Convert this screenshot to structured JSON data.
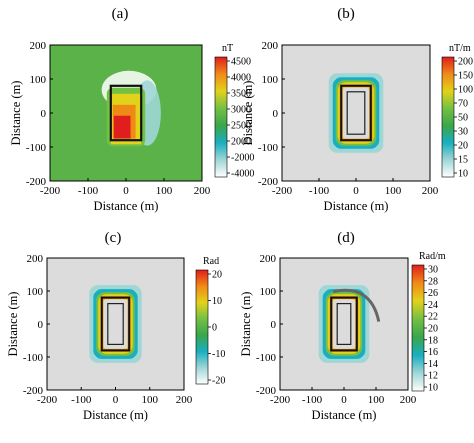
{
  "chart_data": [
    {
      "type": "heatmap",
      "label": "(a)",
      "xlabel": "Distance (m)",
      "ylabel": "Distance (m)",
      "xlim": [
        -200,
        200
      ],
      "ylim": [
        -200,
        200
      ],
      "x_ticks": [
        "-200",
        "-100",
        "0",
        "100",
        "200"
      ],
      "y_ticks": [
        "200",
        "100",
        "0",
        "-100",
        "-200"
      ],
      "colorbar_unit": "nT",
      "colorbar_ticks": [
        "4500",
        "4000",
        "3500",
        "3000",
        "2500",
        "2000",
        "-2000",
        "-4000"
      ],
      "colormap": [
        "#ffffff",
        "#9fd6d6",
        "#19aec0",
        "#3aa64b",
        "#74c043",
        "#e2d21a",
        "#f08a17",
        "#e01e1e"
      ],
      "background_color": "#5bb248",
      "body_outline": {
        "x": [
          -40,
          40
        ],
        "y": [
          -80,
          80
        ]
      }
    },
    {
      "type": "heatmap",
      "label": "(b)",
      "xlabel": "Distance (m)",
      "ylabel": "Distance (m)",
      "xlim": [
        -200,
        200
      ],
      "ylim": [
        -200,
        200
      ],
      "x_ticks": [
        "-200",
        "-100",
        "0",
        "100",
        "200"
      ],
      "y_ticks": [
        "200",
        "100",
        "0",
        "-100",
        "-200"
      ],
      "colorbar_unit": "nT/m",
      "colorbar_ticks": [
        "200",
        "150",
        "100",
        "70",
        "50",
        "30",
        "20",
        "15",
        "10"
      ],
      "colormap": [
        "#ffffff",
        "#9fd6d6",
        "#19aec0",
        "#3aa64b",
        "#74c043",
        "#e2d21a",
        "#f08a17",
        "#e01e1e"
      ],
      "background_color": "#dcdcdc",
      "body_outline": {
        "x": [
          -40,
          40
        ],
        "y": [
          -80,
          80
        ]
      }
    },
    {
      "type": "heatmap",
      "label": "(c)",
      "xlabel": "Distance (m)",
      "ylabel": "Distance (m)",
      "xlim": [
        -200,
        200
      ],
      "ylim": [
        -200,
        200
      ],
      "x_ticks": [
        "-200",
        "-100",
        "0",
        "100",
        "200"
      ],
      "y_ticks": [
        "200",
        "100",
        "0",
        "-100",
        "-200"
      ],
      "colorbar_unit": "Rad",
      "colorbar_ticks": [
        "20",
        "10",
        "0",
        "-10",
        "-20"
      ],
      "colormap": [
        "#ffffff",
        "#9fd6d6",
        "#19aec0",
        "#3aa64b",
        "#74c043",
        "#e2d21a",
        "#f08a17",
        "#e01e1e"
      ],
      "background_color": "#dcdcdc",
      "body_outline": {
        "x": [
          -40,
          40
        ],
        "y": [
          -80,
          80
        ]
      }
    },
    {
      "type": "heatmap",
      "label": "(d)",
      "xlabel": "Distance (m)",
      "ylabel": "Distance (m)",
      "xlim": [
        -200,
        200
      ],
      "ylim": [
        -200,
        200
      ],
      "x_ticks": [
        "-200",
        "-100",
        "0",
        "100",
        "200"
      ],
      "y_ticks": [
        "200",
        "100",
        "0",
        "-100",
        "-200"
      ],
      "colorbar_unit": "Rad/m",
      "colorbar_ticks": [
        "30",
        "28",
        "26",
        "24",
        "22",
        "20",
        "18",
        "16",
        "14",
        "12",
        "10"
      ],
      "colormap": [
        "#ffffff",
        "#9fd6d6",
        "#19aec0",
        "#3aa64b",
        "#74c043",
        "#e2d21a",
        "#f08a17",
        "#e01e1e"
      ],
      "background_color": "#dcdcdc",
      "body_outline": {
        "x": [
          -40,
          40
        ],
        "y": [
          -80,
          80
        ]
      }
    }
  ]
}
